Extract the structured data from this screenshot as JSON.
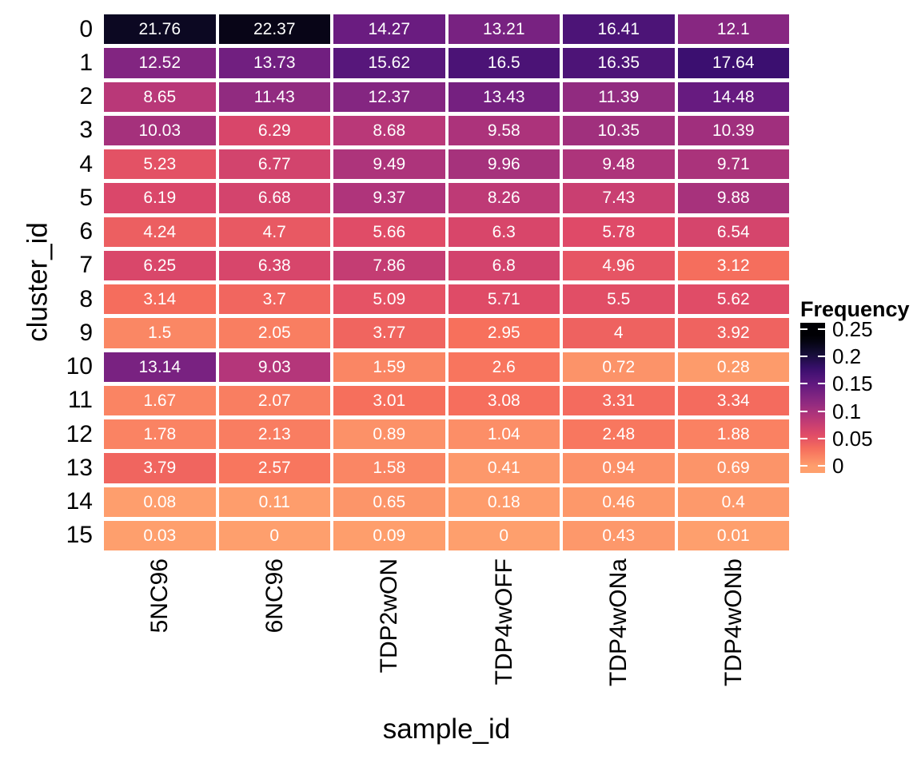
{
  "chart_data": {
    "type": "heatmap",
    "title": "",
    "xlabel": "sample_id",
    "ylabel": "cluster_id",
    "columns": [
      "5NC96",
      "6NC96",
      "TDP2wON",
      "TDP4wOFF",
      "TDP4wONa",
      "TDP4wONb"
    ],
    "rows": [
      "0",
      "1",
      "2",
      "3",
      "4",
      "5",
      "6",
      "7",
      "8",
      "9",
      "10",
      "11",
      "12",
      "13",
      "14",
      "15"
    ],
    "values": [
      [
        "21.76",
        "22.37",
        "14.27",
        "13.21",
        "16.41",
        "12.1"
      ],
      [
        "12.52",
        "13.73",
        "15.62",
        "16.5",
        "16.35",
        "17.64"
      ],
      [
        "8.65",
        "11.43",
        "12.37",
        "13.43",
        "11.39",
        "14.48"
      ],
      [
        "10.03",
        "6.29",
        "8.68",
        "9.58",
        "10.35",
        "10.39"
      ],
      [
        "5.23",
        "6.77",
        "9.49",
        "9.96",
        "9.48",
        "9.71"
      ],
      [
        "6.19",
        "6.68",
        "9.37",
        "8.26",
        "7.43",
        "9.88"
      ],
      [
        "4.24",
        "4.7",
        "5.66",
        "6.3",
        "5.78",
        "6.54"
      ],
      [
        "6.25",
        "6.38",
        "7.86",
        "6.8",
        "4.96",
        "3.12"
      ],
      [
        "3.14",
        "3.7",
        "5.09",
        "5.71",
        "5.5",
        "5.62"
      ],
      [
        "1.5",
        "2.05",
        "3.77",
        "2.95",
        "4",
        "3.92"
      ],
      [
        "13.14",
        "9.03",
        "1.59",
        "2.6",
        "0.72",
        "0.28"
      ],
      [
        "1.67",
        "2.07",
        "3.01",
        "3.08",
        "3.31",
        "3.34"
      ],
      [
        "1.78",
        "2.13",
        "0.89",
        "1.04",
        "2.48",
        "1.88"
      ],
      [
        "3.79",
        "2.57",
        "1.58",
        "0.41",
        "0.94",
        "0.69"
      ],
      [
        "0.08",
        "0.11",
        "0.65",
        "0.18",
        "0.46",
        "0.4"
      ],
      [
        "0.03",
        "0",
        "0.09",
        "0",
        "0.43",
        "0.01"
      ]
    ],
    "legend": {
      "title": "Frequency",
      "tick_labels": [
        "0.25",
        "0.2",
        "0.15",
        "0.1",
        "0.05",
        "0"
      ],
      "tick_values": [
        0.25,
        0.2,
        0.15,
        0.1,
        0.05,
        0
      ],
      "tick_mark_color": "#ffffff"
    },
    "color_scale": {
      "description": "magma colormap reversed; fraction 0 -> salmon-orange, ~0.235 -> black",
      "percent_at_black": 23.5,
      "colormap_end": 0.8,
      "magma_stops": [
        [
          0.0,
          "#000004"
        ],
        [
          0.1,
          "#140e36"
        ],
        [
          0.2,
          "#3b0f70"
        ],
        [
          0.3,
          "#641a80"
        ],
        [
          0.4,
          "#8c2981"
        ],
        [
          0.5,
          "#b73779"
        ],
        [
          0.6,
          "#de4968"
        ],
        [
          0.7,
          "#f7705c"
        ],
        [
          0.8,
          "#fe9f6d"
        ]
      ],
      "cell_text_color": "#ffffff",
      "background": "#ffffff"
    },
    "layout": {
      "grid": "off",
      "legend_position": "right",
      "x_tick_rotation_deg": 90
    }
  }
}
